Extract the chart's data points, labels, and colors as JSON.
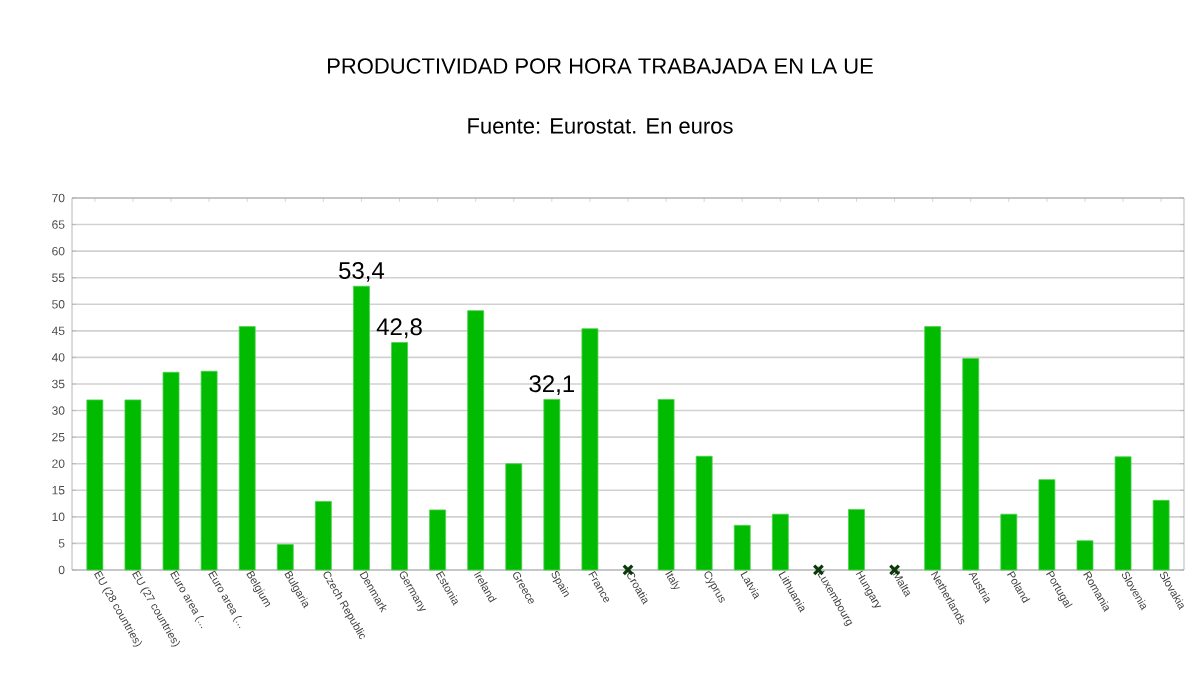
{
  "chart_data": {
    "type": "bar",
    "title": "PRODUCTIVIDAD POR HORA TRABAJADA EN LA UE",
    "subtitle": "Fuente: Eurostat. En euros",
    "categories": [
      "EU (28 countries)",
      "EU (27 countries)",
      "Euro area (...",
      "Euro area (...",
      "Belgium",
      "Bulgaria",
      "Czech Republic",
      "Denmark",
      "Germany",
      "Estonia",
      "Ireland",
      "Greece",
      "Spain",
      "France",
      "Croatia",
      "Italy",
      "Cyprus",
      "Latvia",
      "Lithuania",
      "Luxembourg",
      "Hungary",
      "Malta",
      "Netherlands",
      "Austria",
      "Poland",
      "Portugal",
      "Romania",
      "Slovenia",
      "Slovakia"
    ],
    "series": [
      {
        "type": "bar",
        "color": "#00bb00",
        "values": [
          32.0,
          32.0,
          37.2,
          37.4,
          45.8,
          4.8,
          12.9,
          53.4,
          42.8,
          11.3,
          48.8,
          20.0,
          32.1,
          45.4,
          null,
          32.1,
          21.4,
          8.4,
          10.5,
          null,
          11.4,
          null,
          45.8,
          39.8,
          10.5,
          17.0,
          5.5,
          21.3,
          13.1
        ],
        "value_labels": [
          null,
          null,
          null,
          null,
          null,
          null,
          null,
          "53,4",
          "42,8",
          null,
          null,
          null,
          "32,1",
          null,
          null,
          null,
          null,
          null,
          null,
          null,
          null,
          null,
          null,
          null,
          null,
          null,
          null,
          null,
          null
        ]
      },
      {
        "type": "scatter",
        "color": "#0a3a0a",
        "marker": "cross",
        "x": [
          "Croatia",
          "Luxembourg",
          "Malta"
        ],
        "values": [
          0,
          0,
          0
        ]
      }
    ],
    "ylim": [
      0,
      70
    ],
    "yticks": [
      0,
      5,
      10,
      15,
      20,
      25,
      30,
      35,
      40,
      45,
      50,
      55,
      60,
      65,
      70
    ],
    "grid": "y"
  }
}
